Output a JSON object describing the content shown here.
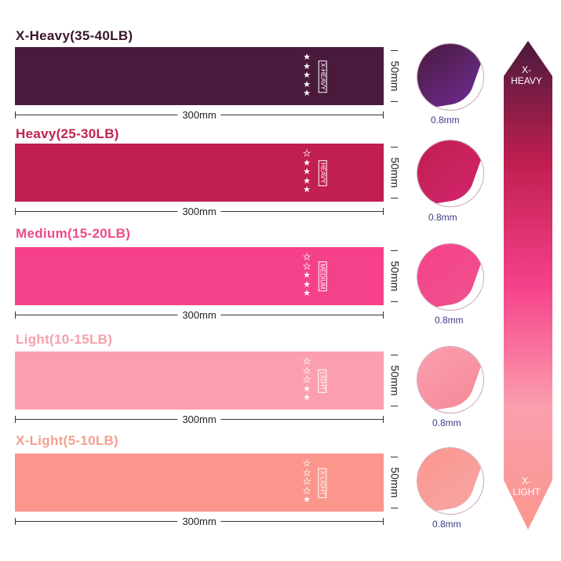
{
  "bands": [
    {
      "title": "X-Heavy(35-40LB)",
      "title_color": "#3a1530",
      "color": "#4a1a3c",
      "fold_color": "#6a2a8a",
      "tag": "X-HEAVY",
      "stars_filled": 5,
      "stars_total": 5,
      "length": "300mm",
      "width": "50mm",
      "thickness": "0.8mm"
    },
    {
      "title": "Heavy(25-30LB)",
      "title_color": "#c0224f",
      "color": "#c01f50",
      "fold_color": "#d0246a",
      "tag": "HEAVY",
      "stars_filled": 4,
      "stars_total": 5,
      "length": "300mm",
      "width": "50mm",
      "thickness": "0.8mm"
    },
    {
      "title": "Medium(15-20LB)",
      "title_color": "#f04a8a",
      "color": "#f5418a",
      "fold_color": "#f0508c",
      "tag": "MEDIUM",
      "stars_filled": 3,
      "stars_total": 5,
      "length": "300mm",
      "width": "50mm",
      "thickness": "0.8mm"
    },
    {
      "title": "Light(10-15LB)",
      "title_color": "#f4a0aa",
      "color": "#fb9fae",
      "fold_color": "#f58c9a",
      "tag": "LIGHT",
      "stars_filled": 2,
      "stars_total": 5,
      "length": "300mm",
      "width": "50mm",
      "thickness": "0.8mm"
    },
    {
      "title": "X-Light(5-10LB)",
      "title_color": "#f3a08f",
      "color": "#fb968c",
      "fold_color": "#f7a4a4",
      "tag": "X-LIGHT",
      "stars_filled": 1,
      "stars_total": 5,
      "length": "300mm",
      "width": "50mm",
      "thickness": "0.8mm"
    }
  ],
  "scale": {
    "top_label_1": "X-",
    "top_label_2": "HEAVY",
    "bottom_label_1": "X-",
    "bottom_label_2": "LIGHT",
    "gradient": [
      "#4a1a3c",
      "#c01f50",
      "#f5418a",
      "#fb9fae",
      "#fb968c"
    ]
  }
}
